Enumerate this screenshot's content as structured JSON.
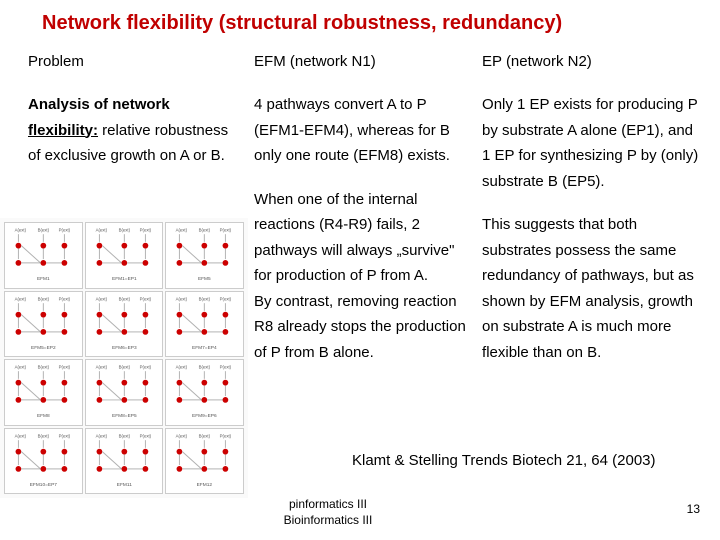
{
  "title": "Network flexibility (structural robustness, redundancy)",
  "title_color": "#c00000",
  "title_fontsize": 20,
  "body_fontsize": 15,
  "headers": {
    "col1": "Problem",
    "col2": "EFM (network N1)",
    "col3": "EP (network N2)"
  },
  "col1": {
    "bold_part": "Analysis of network",
    "under_part": "flexibility:",
    "rest": " relative robustness of exclusive growth on A or B."
  },
  "col2": {
    "p1": "4 pathways convert A to P (EFM1-EFM4), whereas for B only one route (EFM8) exists.",
    "p2": "When one of the internal reactions (R4-R9) fails, 2 pathways will always „survive\" for production of P from A.",
    "p3": "By contrast, removing reaction R8 already stops the production of P from B alone."
  },
  "col3": {
    "p1": "Only 1 EP exists for producing P by substrate A alone (EP1), and 1 EP for synthesizing P by (only) substrate B (EP5).",
    "p2": "This suggests that both substrates possess the same redundancy of pathways, but as shown by EFM analysis, growth on substrate A is much more flexible than on B."
  },
  "citation": "Klamt & Stelling Trends Biotech 21, 64 (2003)",
  "footer1": "pinformatics III",
  "footer2": "Bioinformatics III",
  "pagenum": "13",
  "diagram": {
    "node_color": "#cc0000",
    "edge_color": "#b0b0b0",
    "text_color": "#555555",
    "labels_top": [
      "A(ext)",
      "B(ext)",
      "P(ext)"
    ],
    "cell_captions": [
      "EFM1",
      "EFM1=EP1",
      "EFM5",
      "EFM5=EP2",
      "EFM6=EP3",
      "EFM7=EP4",
      "EFM8",
      "EFM8=EP5",
      "EFM9=EP6",
      "EFM10=EP7",
      "EFM11",
      "EFM12"
    ]
  }
}
